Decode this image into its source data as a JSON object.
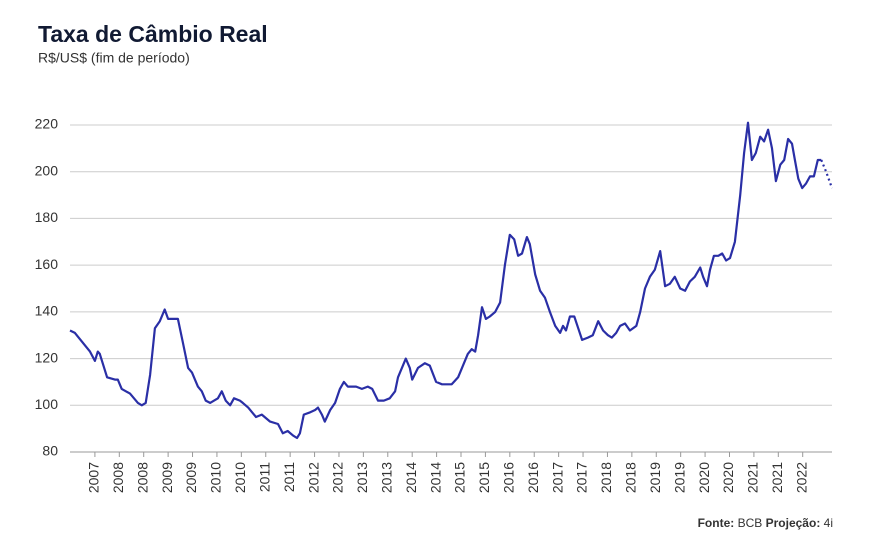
{
  "chart_data": {
    "type": "line",
    "title": "Taxa de Câmbio Real",
    "subtitle": "R$/US$ (fim de período)",
    "source_label": "Fonte:",
    "source": "BCB",
    "projection_label": "Projeção:",
    "projection_source": "4i",
    "xlim": [
      2006.99,
      2022.6
    ],
    "ylim": [
      80,
      220
    ],
    "yticks": [
      80,
      100,
      120,
      140,
      160,
      180,
      200,
      220
    ],
    "grid": true,
    "xticks": [
      {
        "value": 2007.5,
        "label": "2007"
      },
      2008,
      {
        "value": 2008.5,
        "label": "2008"
      },
      2009,
      {
        "value": 2009.5,
        "label": "2009"
      },
      2010,
      {
        "value": 2010.5,
        "label": "2010"
      },
      2011,
      {
        "value": 2011.5,
        "label": "2011"
      },
      2012,
      {
        "value": 2012.5,
        "label": "2012"
      },
      2013,
      {
        "value": 2013.5,
        "label": "2013"
      },
      2014,
      {
        "value": 2014.5,
        "label": "2014"
      },
      2015,
      {
        "value": 2015.5,
        "label": "2015"
      },
      2016,
      {
        "value": 2016.5,
        "label": "2016"
      },
      2017,
      {
        "value": 2017.5,
        "label": "2017"
      },
      2018,
      {
        "value": 2018.5,
        "label": "2018"
      },
      2019,
      {
        "value": 2019.5,
        "label": "2019"
      },
      2020,
      {
        "value": 2020.5,
        "label": "2020"
      },
      2021,
      {
        "value": 2021.5,
        "label": "2021"
      },
      2022
    ],
    "x": [
      2006.99,
      2007.09,
      2007.4,
      2007.5,
      2007.56,
      2007.6,
      2007.75,
      2007.91,
      2007.97,
      2008.05,
      2008.22,
      2008.38,
      2008.46,
      2008.54,
      2008.63,
      2008.73,
      2008.83,
      2008.93,
      2009.0,
      2009.14,
      2009.2,
      2009.3,
      2009.41,
      2009.49,
      2009.61,
      2009.69,
      2009.77,
      2009.86,
      2010.02,
      2010.1,
      2010.18,
      2010.27,
      2010.35,
      2010.47,
      2010.53,
      2010.64,
      2010.72,
      2010.8,
      2010.92,
      2011.09,
      2011.25,
      2011.35,
      2011.45,
      2011.56,
      2011.64,
      2011.7,
      2011.78,
      2011.91,
      2012.01,
      2012.07,
      2012.15,
      2012.21,
      2012.32,
      2012.42,
      2012.52,
      2012.6,
      2012.68,
      2012.85,
      2012.97,
      2013.09,
      2013.18,
      2013.3,
      2013.42,
      2013.54,
      2013.65,
      2013.71,
      2013.83,
      2013.87,
      2013.95,
      2014.0,
      2014.12,
      2014.26,
      2014.36,
      2014.49,
      2014.61,
      2014.73,
      2014.81,
      2014.94,
      2015.02,
      2015.14,
      2015.22,
      2015.29,
      2015.35,
      2015.43,
      2015.51,
      2015.59,
      2015.7,
      2015.8,
      2015.9,
      2016.0,
      2016.09,
      2016.17,
      2016.25,
      2016.35,
      2016.41,
      2016.52,
      2016.62,
      2016.72,
      2016.82,
      2016.93,
      2017.03,
      2017.09,
      2017.15,
      2017.23,
      2017.32,
      2017.4,
      2017.48,
      2017.6,
      2017.7,
      2017.81,
      2017.91,
      2018.01,
      2018.09,
      2018.18,
      2018.26,
      2018.36,
      2018.46,
      2018.59,
      2018.67,
      2018.77,
      2018.87,
      2018.97,
      2019.08,
      2019.18,
      2019.28,
      2019.38,
      2019.49,
      2019.59,
      2019.69,
      2019.79,
      2019.9,
      2019.96,
      2020.04,
      2020.1,
      2020.18,
      2020.27,
      2020.35,
      2020.43,
      2020.51,
      2020.61,
      2020.72,
      2020.8,
      2020.88,
      2020.96,
      2021.04,
      2021.13,
      2021.21,
      2021.29,
      2021.37,
      2021.45,
      2021.54,
      2021.62,
      2021.7,
      2021.78,
      2021.84,
      2021.91,
      2021.99,
      2022.07,
      2022.15,
      2022.23,
      2022.31,
      2022.38,
      2022.48,
      2022.6
    ],
    "series": [
      {
        "color": "#2a2fa6",
        "style": "solid",
        "values": [
          132,
          131,
          123,
          119,
          123,
          122,
          112,
          111,
          111,
          107,
          105,
          101,
          100,
          101,
          113,
          133,
          136,
          141,
          137,
          137,
          137,
          127,
          116,
          114,
          108,
          106,
          102,
          101,
          103,
          106,
          102,
          100,
          103,
          102,
          101,
          99,
          97,
          95,
          96,
          93,
          92,
          88,
          89,
          87,
          86,
          88,
          96,
          97,
          98,
          99,
          96,
          93,
          98,
          101,
          107,
          110,
          108,
          108,
          107,
          108,
          107,
          102,
          102,
          103,
          106,
          112,
          118,
          120,
          116,
          111,
          116,
          118,
          117,
          110,
          109,
          109,
          109,
          112,
          116,
          122,
          124,
          123,
          130,
          142,
          137,
          138,
          140,
          144,
          160,
          173,
          171,
          164,
          165,
          172,
          169,
          156,
          149,
          146,
          140,
          134,
          131,
          134,
          132,
          138,
          138,
          133,
          128,
          129,
          130,
          136,
          132,
          130,
          129,
          131,
          134,
          135,
          132,
          134,
          140,
          150,
          155,
          158,
          166,
          151,
          152,
          155,
          150,
          149,
          153,
          155,
          159,
          155,
          151,
          158,
          164,
          164,
          165,
          162,
          163,
          170,
          190,
          208,
          221,
          205,
          208,
          215,
          213,
          218,
          210,
          196,
          203,
          205,
          214,
          212,
          205,
          197,
          193,
          195,
          198,
          198,
          205,
          205,
          null,
          null
        ]
      },
      {
        "color": "#2a2fa6",
        "style": "dotted",
        "values": [
          null,
          null,
          null,
          null,
          null,
          null,
          null,
          null,
          null,
          null,
          null,
          null,
          null,
          null,
          null,
          null,
          null,
          null,
          null,
          null,
          null,
          null,
          null,
          null,
          null,
          null,
          null,
          null,
          null,
          null,
          null,
          null,
          null,
          null,
          null,
          null,
          null,
          null,
          null,
          null,
          null,
          null,
          null,
          null,
          null,
          null,
          null,
          null,
          null,
          null,
          null,
          null,
          null,
          null,
          null,
          null,
          null,
          null,
          null,
          null,
          null,
          null,
          null,
          null,
          null,
          null,
          null,
          null,
          null,
          null,
          null,
          null,
          null,
          null,
          null,
          null,
          null,
          null,
          null,
          null,
          null,
          null,
          null,
          null,
          null,
          null,
          null,
          null,
          null,
          null,
          null,
          null,
          null,
          null,
          null,
          null,
          null,
          null,
          null,
          null,
          null,
          null,
          null,
          null,
          null,
          null,
          null,
          null,
          null,
          null,
          null,
          null,
          null,
          null,
          null,
          null,
          null,
          null,
          null,
          null,
          null,
          null,
          null,
          null,
          null,
          null,
          null,
          null,
          null,
          null,
          null,
          null,
          null,
          null,
          null,
          null,
          null,
          null,
          null,
          null,
          null,
          null,
          null,
          null,
          null,
          null,
          null,
          null,
          null,
          null,
          null,
          null,
          null,
          null,
          null,
          null,
          null,
          null,
          null,
          null,
          null,
          205,
          200,
          193
        ]
      }
    ]
  }
}
